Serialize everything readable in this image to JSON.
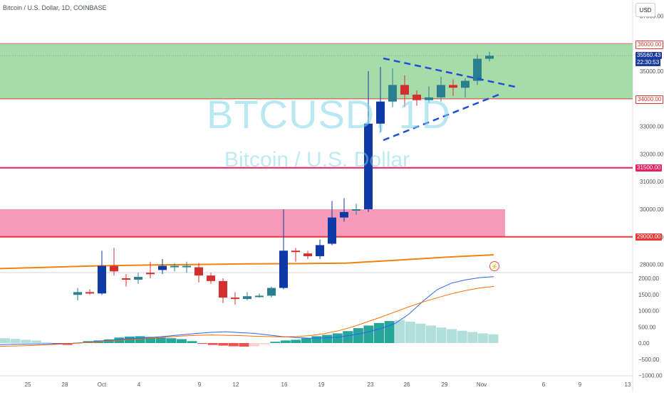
{
  "header": {
    "title": "Bitcoin / U.S. Dollar, 1D, COINBASE",
    "currency_button": "USD",
    "watermark_symbol": "BTCUSD, 1D",
    "watermark_name": "Bitcoin / U.S. Dollar"
  },
  "price_tags": {
    "zone_top": "36000.00",
    "last_price": "35560.43",
    "countdown": "22:30:53",
    "zone_bottom": "34000.00",
    "level_mid": "31500.00",
    "level_low": "29000.00"
  },
  "colors": {
    "up": "#26a69a",
    "down": "#ef5350",
    "highlight": "#0d3aa6",
    "green_zone": "#a3d9a5",
    "pink_zone": "#f48fb1",
    "level_line": "#e91e63",
    "ema": "#f0820f",
    "macd": "#2962ff",
    "signal": "#ff6d00",
    "trend": "#1e4fd8"
  },
  "chart_data": [
    {
      "type": "candlestick",
      "title": "Bitcoin / U.S. Dollar, 1D, COINBASE",
      "y_axis_ticks": [
        28000,
        29000,
        30000,
        31000,
        32000,
        33000,
        34000,
        35000,
        36000,
        37000
      ],
      "x_axis_ticks": [
        "25",
        "28",
        "Oct",
        "4",
        "9",
        "12",
        "16",
        "19",
        "23",
        "26",
        "29",
        "Nov",
        "6",
        "9",
        "13"
      ],
      "candles": [
        {
          "d": "Sep 29",
          "o": 26900,
          "h": 27150,
          "l": 26700,
          "c": 27000,
          "dir": "up"
        },
        {
          "d": "Sep 30",
          "o": 27000,
          "h": 27100,
          "l": 26900,
          "c": 26950,
          "dir": "down"
        },
        {
          "d": "Oct 1",
          "o": 26950,
          "h": 28500,
          "l": 26900,
          "c": 27950,
          "dir": "up",
          "hl": true
        },
        {
          "d": "Oct 2",
          "o": 27950,
          "h": 28600,
          "l": 27600,
          "c": 27750,
          "dir": "down"
        },
        {
          "d": "Oct 3",
          "o": 27500,
          "h": 27650,
          "l": 27200,
          "c": 27450,
          "dir": "down"
        },
        {
          "d": "Oct 4",
          "o": 27450,
          "h": 27700,
          "l": 27300,
          "c": 27550,
          "dir": "up"
        },
        {
          "d": "Oct 5",
          "o": 27700,
          "h": 28100,
          "l": 27500,
          "c": 27650,
          "dir": "down"
        },
        {
          "d": "Oct 6",
          "o": 27800,
          "h": 28200,
          "l": 27650,
          "c": 27950,
          "dir": "up",
          "hl": true
        },
        {
          "d": "Oct 7",
          "o": 27900,
          "h": 28050,
          "l": 27750,
          "c": 27950,
          "dir": "up"
        },
        {
          "d": "Oct 8",
          "o": 27900,
          "h": 28100,
          "l": 27700,
          "c": 27950,
          "dir": "up"
        },
        {
          "d": "Oct 9",
          "o": 27900,
          "h": 28050,
          "l": 27350,
          "c": 27600,
          "dir": "down"
        },
        {
          "d": "Oct 10",
          "o": 27600,
          "h": 27700,
          "l": 27300,
          "c": 27400,
          "dir": "down"
        },
        {
          "d": "Oct 11",
          "o": 27400,
          "h": 27500,
          "l": 26600,
          "c": 26800,
          "dir": "down"
        },
        {
          "d": "Oct 12",
          "o": 26800,
          "h": 27000,
          "l": 26550,
          "c": 26750,
          "dir": "down"
        },
        {
          "d": "Oct 13",
          "o": 26750,
          "h": 27000,
          "l": 26700,
          "c": 26850,
          "dir": "up"
        },
        {
          "d": "Oct 14",
          "o": 26850,
          "h": 26950,
          "l": 26800,
          "c": 26870,
          "dir": "up"
        },
        {
          "d": "Oct 15",
          "o": 26870,
          "h": 27200,
          "l": 26800,
          "c": 27150,
          "dir": "up"
        },
        {
          "d": "Oct 16",
          "o": 27150,
          "h": 30000,
          "l": 27100,
          "c": 28500,
          "dir": "up",
          "hl": true
        },
        {
          "d": "Oct 17",
          "o": 28500,
          "h": 28600,
          "l": 28100,
          "c": 28450,
          "dir": "down"
        },
        {
          "d": "Oct 18",
          "o": 28400,
          "h": 28500,
          "l": 28200,
          "c": 28300,
          "dir": "down"
        },
        {
          "d": "Oct 19",
          "o": 28300,
          "h": 28900,
          "l": 28200,
          "c": 28700,
          "dir": "up",
          "hl": true
        },
        {
          "d": "Oct 20",
          "o": 28750,
          "h": 30300,
          "l": 28700,
          "c": 29700,
          "dir": "up",
          "hl": true
        },
        {
          "d": "Oct 21",
          "o": 29700,
          "h": 30400,
          "l": 29550,
          "c": 29900,
          "dir": "up",
          "hl": true
        },
        {
          "d": "Oct 22",
          "o": 29950,
          "h": 30200,
          "l": 29800,
          "c": 30000,
          "dir": "up"
        },
        {
          "d": "Oct 23",
          "o": 30000,
          "h": 35000,
          "l": 29900,
          "c": 33100,
          "dir": "up",
          "hl": true
        },
        {
          "d": "Oct 24",
          "o": 33100,
          "h": 35150,
          "l": 32800,
          "c": 33900,
          "dir": "up",
          "hl": true
        },
        {
          "d": "Oct 25",
          "o": 33900,
          "h": 35100,
          "l": 33700,
          "c": 34500,
          "dir": "up"
        },
        {
          "d": "Oct 26",
          "o": 34500,
          "h": 34850,
          "l": 33700,
          "c": 34150,
          "dir": "down"
        },
        {
          "d": "Oct 27",
          "o": 34150,
          "h": 34300,
          "l": 33750,
          "c": 33950,
          "dir": "down"
        },
        {
          "d": "Oct 28",
          "o": 33950,
          "h": 34450,
          "l": 33850,
          "c": 34050,
          "dir": "up"
        },
        {
          "d": "Oct 29",
          "o": 34050,
          "h": 34800,
          "l": 33900,
          "c": 34500,
          "dir": "up"
        },
        {
          "d": "Oct 30",
          "o": 34500,
          "h": 34700,
          "l": 34100,
          "c": 34400,
          "dir": "down"
        },
        {
          "d": "Oct 31",
          "o": 34400,
          "h": 34750,
          "l": 34050,
          "c": 34650,
          "dir": "up"
        },
        {
          "d": "Nov 1",
          "o": 34650,
          "h": 35600,
          "l": 34500,
          "c": 35450,
          "dir": "up"
        },
        {
          "d": "Nov 2",
          "o": 35450,
          "h": 35700,
          "l": 35350,
          "c": 35560,
          "dir": "up"
        }
      ],
      "ema_200": [
        27850,
        27900,
        27950,
        27980,
        28000,
        28020,
        28030,
        28050,
        28150,
        28260,
        28350
      ]
    },
    {
      "type": "macd",
      "y_axis_ticks": [
        -1000,
        -500,
        0,
        500,
        1000,
        1500,
        2000
      ],
      "histogram": [
        150,
        130,
        100,
        80,
        20,
        -40,
        -60,
        10,
        60,
        80,
        110,
        170,
        200,
        210,
        190,
        170,
        150,
        120,
        60,
        -20,
        -60,
        -80,
        -100,
        -110,
        -100,
        -40,
        40,
        80,
        100,
        150,
        210,
        250,
        300,
        370,
        460,
        540,
        620,
        680,
        700,
        660,
        600,
        540,
        480,
        430,
        380,
        340,
        300,
        270
      ],
      "macd_line": [
        -50,
        -40,
        -30,
        -25,
        -20,
        -10,
        20,
        60,
        90,
        120,
        150,
        180,
        220,
        260,
        300,
        330,
        350,
        320,
        300,
        250,
        200,
        170,
        150,
        160,
        180,
        250,
        330,
        450,
        600,
        900,
        1300,
        1650,
        1850,
        1950,
        2020,
        2050
      ],
      "signal_line": [
        -100,
        -90,
        -80,
        -60,
        -40,
        -20,
        10,
        40,
        70,
        100,
        130,
        160,
        190,
        220,
        240,
        250,
        240,
        230,
        210,
        200,
        190,
        200,
        230,
        290,
        380,
        500,
        650,
        800,
        960,
        1120,
        1270,
        1400,
        1520,
        1620,
        1700,
        1750
      ]
    }
  ]
}
